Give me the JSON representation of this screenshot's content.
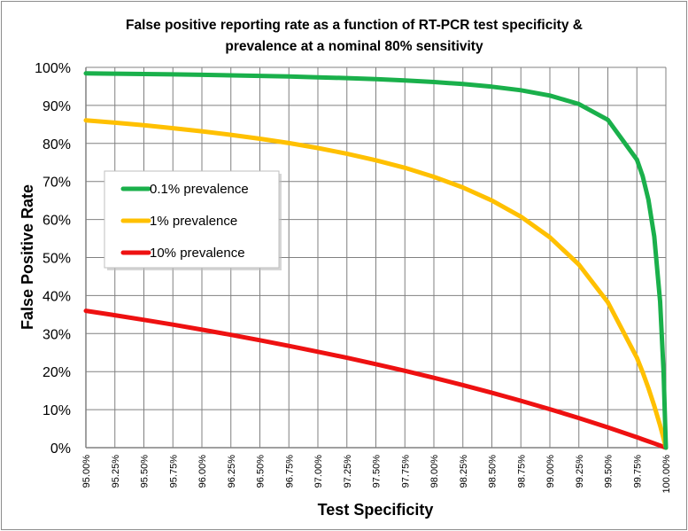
{
  "chart_data": {
    "type": "line",
    "title_lines": [
      "False positive reporting rate as a function of RT-PCR test specificity &",
      "prevalence at a nominal 80% sensitivity"
    ],
    "xlabel": "Test Specificity",
    "ylabel": "False Positive Rate",
    "xlim": [
      95,
      100
    ],
    "ylim": [
      0,
      100
    ],
    "grid": true,
    "legend_position": "left-middle",
    "x_tick_labels": [
      "95.00%",
      "95.25%",
      "95.50%",
      "95.75%",
      "96.00%",
      "96.25%",
      "96.50%",
      "96.75%",
      "97.00%",
      "97.25%",
      "97.50%",
      "97.75%",
      "98.00%",
      "98.25%",
      "98.50%",
      "98.75%",
      "99.00%",
      "99.25%",
      "99.50%",
      "99.75%",
      "100.00%"
    ],
    "y_tick_labels": [
      "0%",
      "10%",
      "20%",
      "30%",
      "40%",
      "50%",
      "60%",
      "70%",
      "80%",
      "90%",
      "100%"
    ],
    "x": [
      95,
      95.25,
      95.5,
      95.75,
      96,
      96.25,
      96.5,
      96.75,
      97,
      97.25,
      97.5,
      97.75,
      98,
      98.25,
      98.5,
      98.75,
      99,
      99.25,
      99.5,
      99.75,
      99.8,
      99.85,
      99.9,
      99.95,
      99.98,
      100
    ],
    "series": [
      {
        "name": "0.1% prevalence",
        "color": "#1ab04b",
        "values": [
          98.42,
          98.34,
          98.25,
          98.15,
          98.04,
          97.91,
          97.76,
          97.6,
          97.4,
          97.17,
          96.9,
          96.56,
          96.15,
          95.62,
          94.93,
          93.98,
          92.59,
          90.35,
          86.2,
          75.74,
          71.41,
          65.19,
          55.53,
          38.44,
          19.98,
          0
        ]
      },
      {
        "name": "1% prevalence",
        "color": "#ffc000",
        "values": [
          86.09,
          85.46,
          84.78,
          84.02,
          83.19,
          82.27,
          81.24,
          80.09,
          78.78,
          77.29,
          75.57,
          73.58,
          71.22,
          68.41,
          64.99,
          60.74,
          55.31,
          48.14,
          38.22,
          23.63,
          19.84,
          15.66,
          11.01,
          5.83,
          2.42,
          0
        ]
      },
      {
        "name": "10% prevalence",
        "color": "#ee1111",
        "values": [
          36.0,
          34.83,
          33.61,
          32.35,
          31.03,
          29.67,
          28.25,
          26.77,
          25.23,
          23.63,
          21.95,
          20.2,
          18.37,
          16.45,
          14.44,
          12.33,
          10.11,
          7.78,
          5.33,
          2.74,
          2.2,
          1.66,
          1.11,
          0.56,
          0.22,
          0
        ]
      }
    ]
  }
}
